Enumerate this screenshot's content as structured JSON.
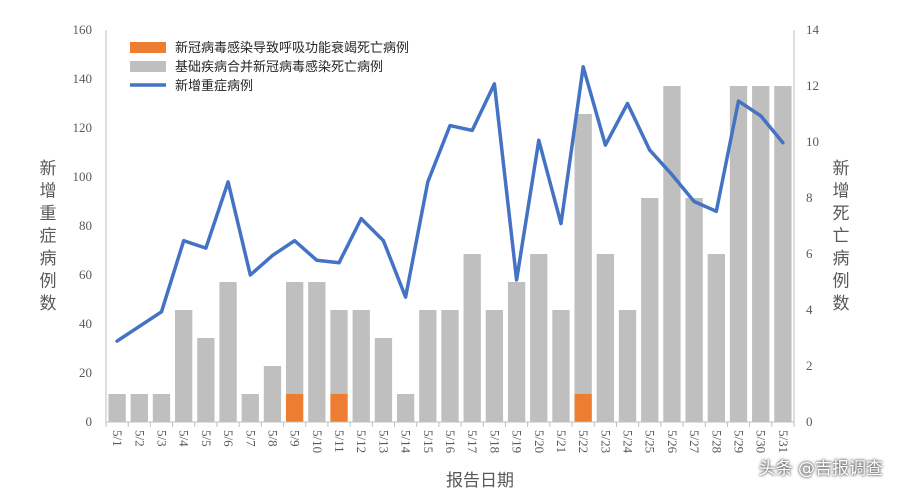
{
  "chart_data": {
    "type": "bar+line",
    "categories": [
      "5/1",
      "5/2",
      "5/3",
      "5/4",
      "5/5",
      "5/6",
      "5/7",
      "5/8",
      "5/9",
      "5/10",
      "5/11",
      "5/12",
      "5/13",
      "5/14",
      "5/15",
      "5/16",
      "5/17",
      "5/18",
      "5/19",
      "5/20",
      "5/21",
      "5/22",
      "5/23",
      "5/24",
      "5/25",
      "5/26",
      "5/27",
      "5/28",
      "5/29",
      "5/30",
      "5/31"
    ],
    "series": [
      {
        "name": "新冠病毒感染导致呼吸功能衰竭死亡病例",
        "type": "bar",
        "axis": "right",
        "color": "#ED7D31",
        "values": [
          0,
          0,
          0,
          0,
          0,
          0,
          0,
          0,
          1,
          0,
          1,
          0,
          0,
          0,
          0,
          0,
          0,
          0,
          0,
          0,
          0,
          1,
          0,
          0,
          0,
          0,
          0,
          0,
          0,
          0,
          0
        ]
      },
      {
        "name": "基础疾病合并新冠病毒感染死亡病例",
        "type": "bar",
        "axis": "right",
        "color": "#BFBFBF",
        "values": [
          1,
          1,
          1,
          4,
          3,
          5,
          1,
          2,
          4,
          5,
          3,
          4,
          3,
          1,
          4,
          4,
          6,
          4,
          5,
          6,
          4,
          10,
          6,
          4,
          8,
          12,
          8,
          6,
          12,
          12,
          12
        ]
      },
      {
        "name": "新增重症病例",
        "type": "line",
        "axis": "left",
        "color": "#4472C4",
        "values": [
          33,
          39,
          45,
          74,
          71,
          98,
          60,
          68,
          74,
          66,
          65,
          83,
          74,
          51,
          98,
          121,
          119,
          138,
          58,
          115,
          81,
          145,
          113,
          130,
          111,
          101,
          90,
          86,
          131,
          125,
          114
        ]
      }
    ],
    "xlabel": "报告日期",
    "ylabel": "新增重症病例数",
    "y2label": "新增死亡病例数",
    "ylim": [
      0,
      160
    ],
    "y2lim": [
      0,
      14
    ],
    "yticks": [
      0,
      20,
      40,
      60,
      80,
      100,
      120,
      140,
      160
    ],
    "y2ticks": [
      0,
      2,
      4,
      6,
      8,
      10,
      12,
      14
    ],
    "legend_position": "top-left"
  },
  "watermark": "头条 @吉报调查"
}
